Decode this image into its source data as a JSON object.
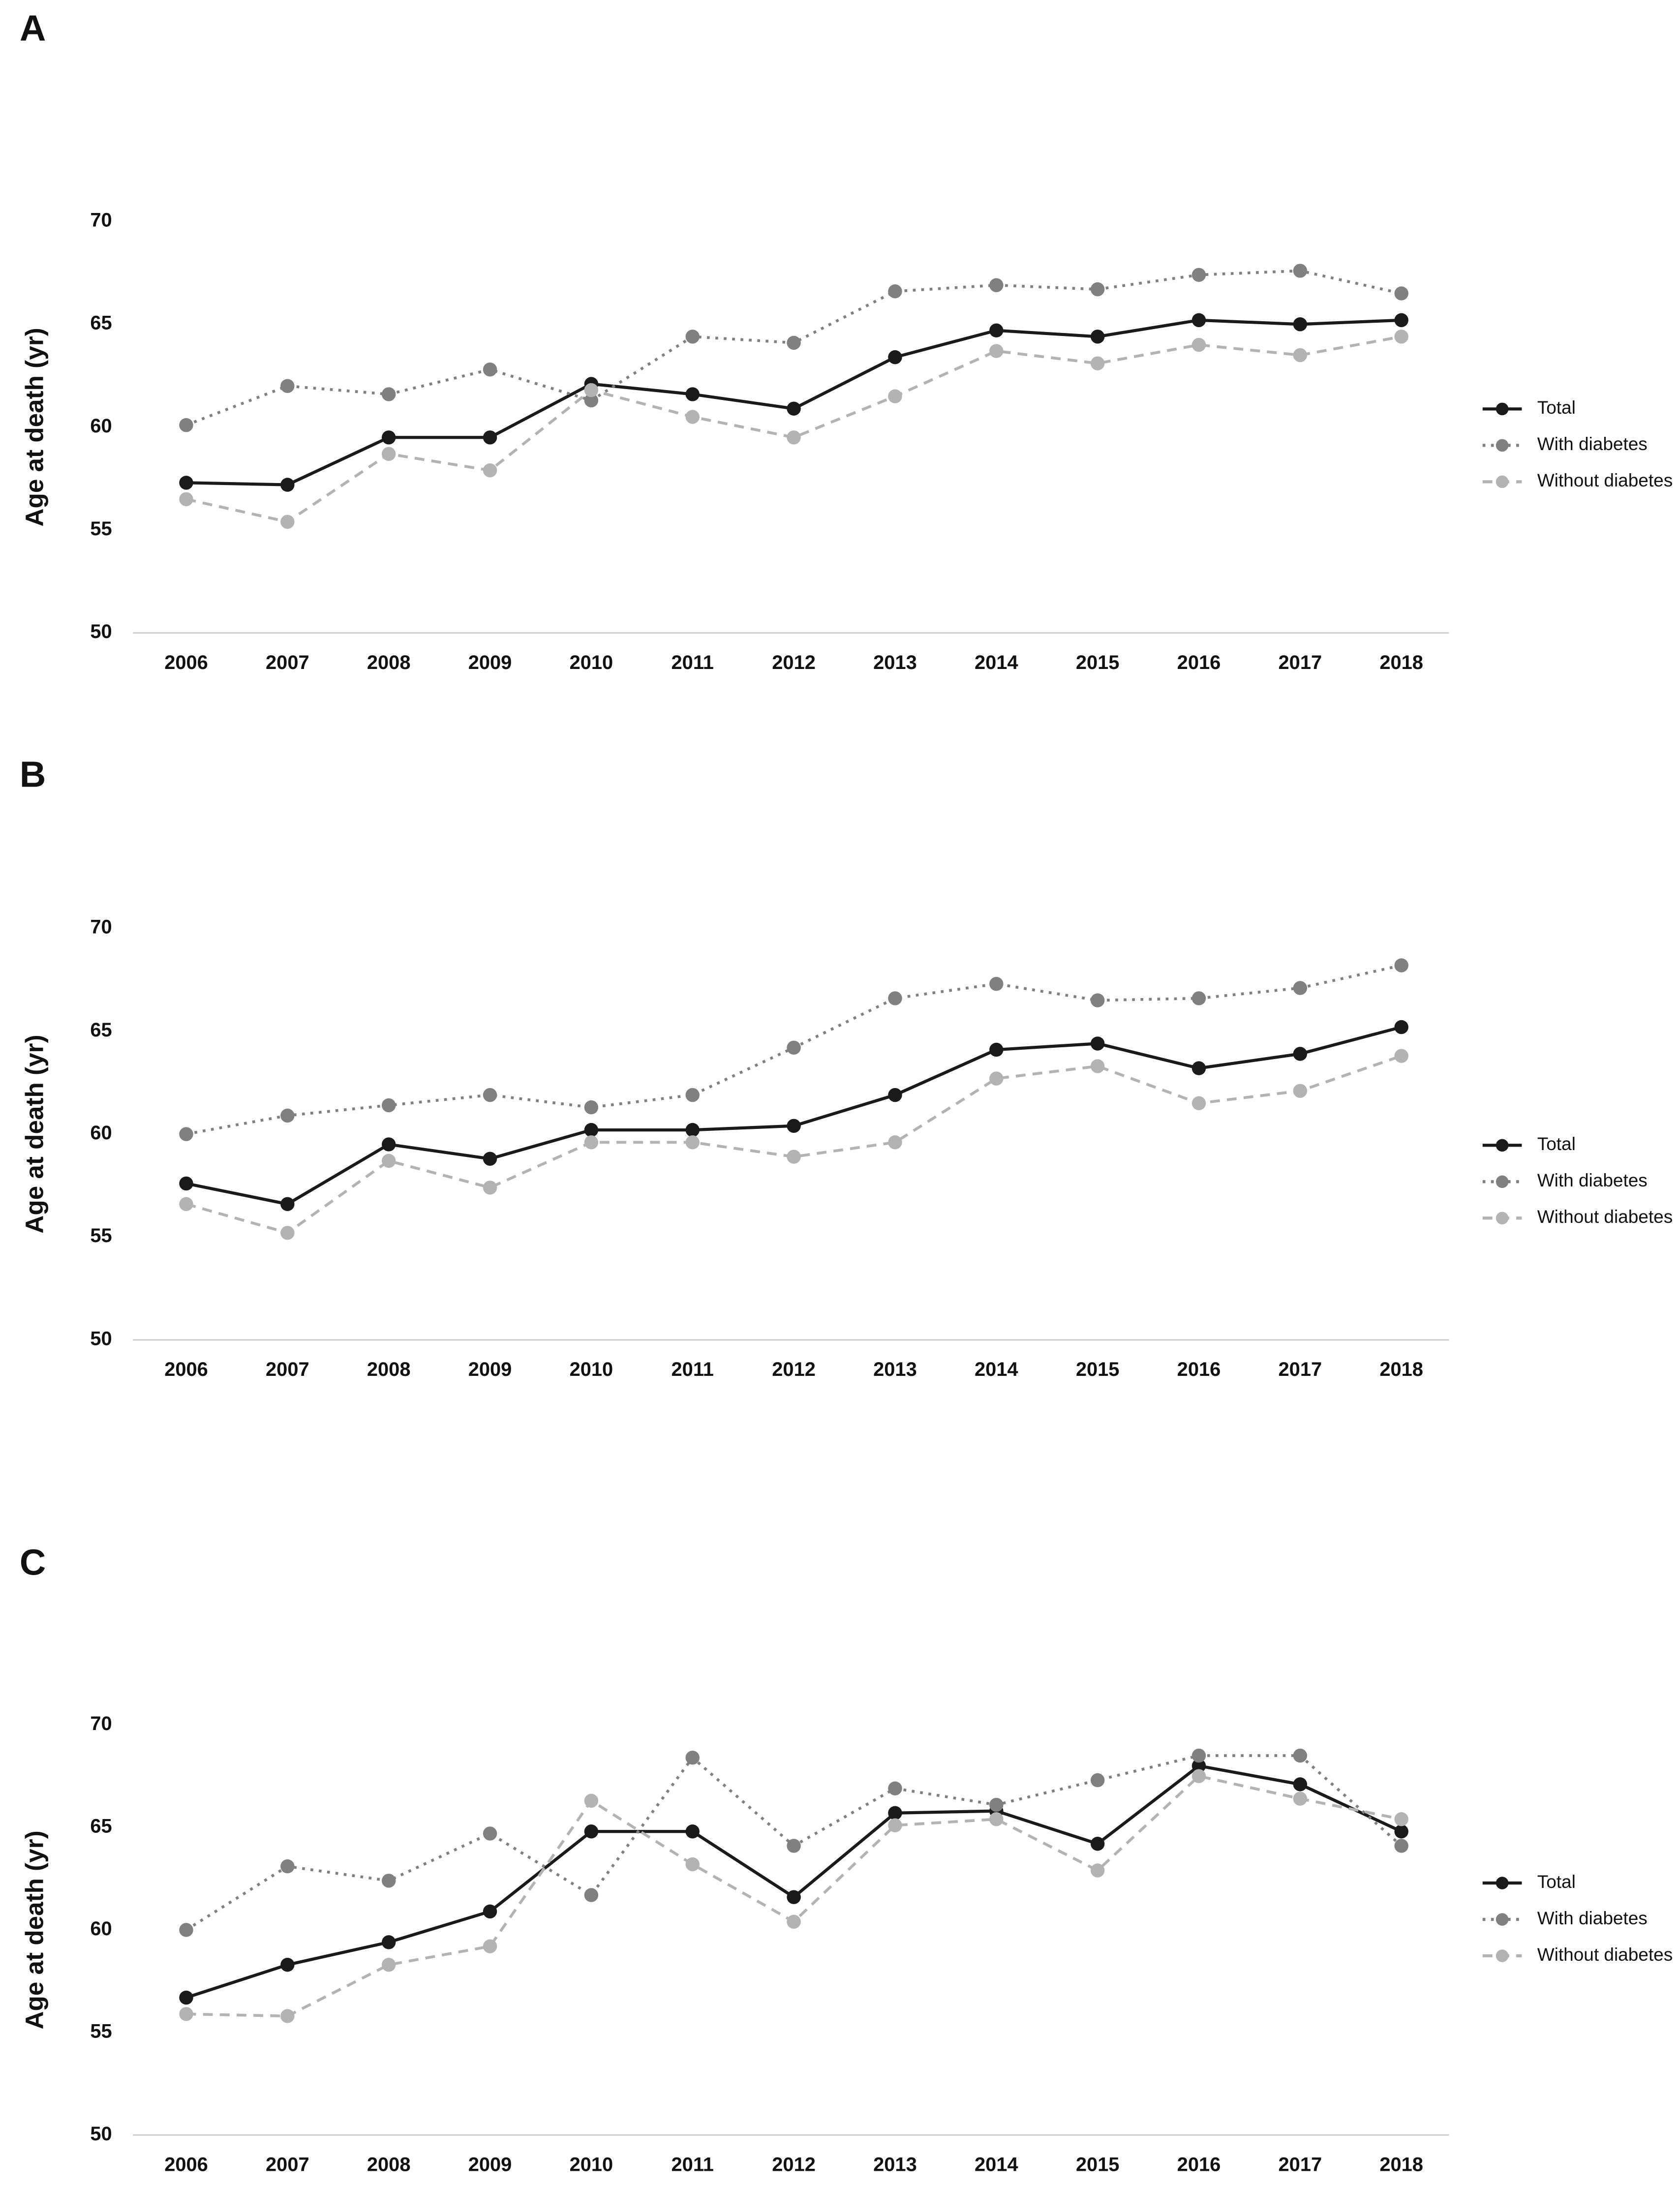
{
  "chart_data": [
    {
      "type": "line",
      "panel": "A",
      "y_label": "Age at death (yr)",
      "categories": [
        "2006",
        "2007",
        "2008",
        "2009",
        "2010",
        "2011",
        "2012",
        "2013",
        "2014",
        "2015",
        "2016",
        "2017",
        "2018"
      ],
      "ylim": [
        50,
        70
      ],
      "yticks": [
        50,
        55,
        60,
        65,
        70
      ],
      "series": [
        {
          "name": "Total",
          "color": "#1a1a1a",
          "style": "solid",
          "values": [
            57.3,
            57.2,
            59.5,
            59.5,
            62.1,
            61.6,
            60.9,
            63.4,
            64.7,
            64.4,
            65.2,
            65.0,
            65.2
          ]
        },
        {
          "name": "With diabetes",
          "color": "#808080",
          "style": "dotted",
          "values": [
            60.1,
            62.0,
            61.6,
            62.8,
            61.3,
            64.4,
            64.1,
            66.6,
            66.9,
            66.7,
            67.4,
            67.6,
            66.5
          ]
        },
        {
          "name": "Without diabetes",
          "color": "#b3b3b3",
          "style": "dashed",
          "values": [
            56.5,
            55.4,
            58.7,
            57.9,
            61.8,
            60.5,
            59.5,
            61.5,
            63.7,
            63.1,
            64.0,
            63.5,
            64.4
          ]
        }
      ]
    },
    {
      "type": "line",
      "panel": "B",
      "y_label": "Age at death (yr)",
      "categories": [
        "2006",
        "2007",
        "2008",
        "2009",
        "2010",
        "2011",
        "2012",
        "2013",
        "2014",
        "2015",
        "2016",
        "2017",
        "2018"
      ],
      "ylim": [
        50,
        70
      ],
      "yticks": [
        50,
        55,
        60,
        65,
        70
      ],
      "series": [
        {
          "name": "Total",
          "color": "#1a1a1a",
          "style": "solid",
          "values": [
            57.6,
            56.6,
            59.5,
            58.8,
            60.2,
            60.2,
            60.4,
            61.9,
            64.1,
            64.4,
            63.2,
            63.9,
            65.2
          ]
        },
        {
          "name": "With diabetes",
          "color": "#808080",
          "style": "dotted",
          "values": [
            60.0,
            60.9,
            61.4,
            61.9,
            61.3,
            61.9,
            64.2,
            66.6,
            67.3,
            66.5,
            66.6,
            67.1,
            68.2
          ]
        },
        {
          "name": "Without diabetes",
          "color": "#b3b3b3",
          "style": "dashed",
          "values": [
            56.6,
            55.2,
            58.7,
            57.4,
            59.6,
            59.6,
            58.9,
            59.6,
            62.7,
            63.3,
            61.5,
            62.1,
            63.8
          ]
        }
      ]
    },
    {
      "type": "line",
      "panel": "C",
      "y_label": "Age at death (yr)",
      "categories": [
        "2006",
        "2007",
        "2008",
        "2009",
        "2010",
        "2011",
        "2012",
        "2013",
        "2014",
        "2015",
        "2016",
        "2017",
        "2018"
      ],
      "ylim": [
        50,
        70
      ],
      "yticks": [
        50,
        55,
        60,
        65,
        70
      ],
      "series": [
        {
          "name": "Total",
          "color": "#1a1a1a",
          "style": "solid",
          "values": [
            56.7,
            58.3,
            59.4,
            60.9,
            64.8,
            64.8,
            61.6,
            65.7,
            65.8,
            64.2,
            68.0,
            67.1,
            64.8
          ]
        },
        {
          "name": "With diabetes",
          "color": "#808080",
          "style": "dotted",
          "values": [
            60.0,
            63.1,
            62.4,
            64.7,
            61.7,
            68.4,
            64.1,
            66.9,
            66.1,
            67.3,
            68.5,
            68.5,
            64.1
          ]
        },
        {
          "name": "Without diabetes",
          "color": "#b3b3b3",
          "style": "dashed",
          "values": [
            55.9,
            55.8,
            58.3,
            59.2,
            66.3,
            63.2,
            60.4,
            65.1,
            65.4,
            62.9,
            67.5,
            66.4,
            65.4
          ]
        }
      ]
    }
  ]
}
